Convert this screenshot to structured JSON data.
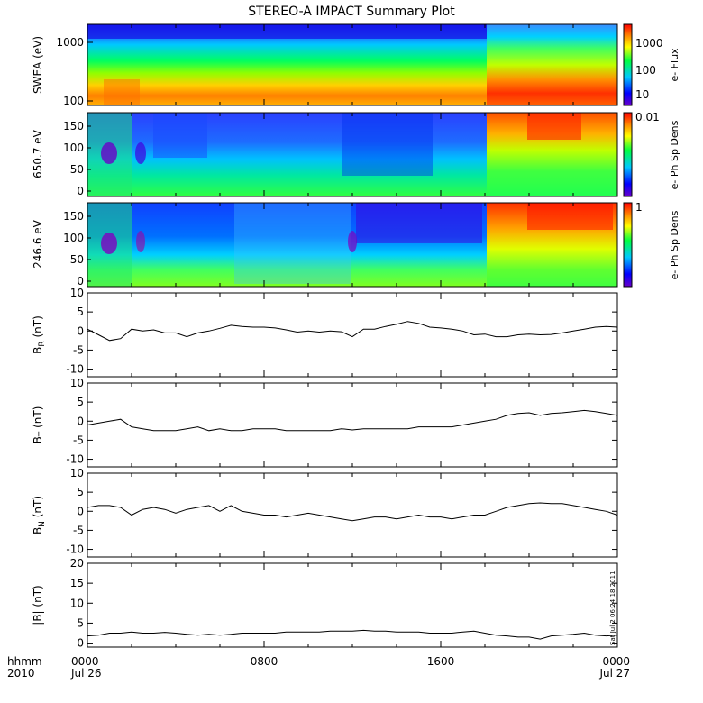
{
  "title": "STEREO-A IMPACT Summary Plot",
  "footer": {
    "left_top": "hhmm",
    "left_bottom": "2010",
    "timestamp": "Sat Jul  2 06:24:18 2011"
  },
  "chart_data": [
    {
      "type": "heatmap",
      "ylabel": "SWEA (eV)",
      "colorbar_label": "e- Flux",
      "yscale": "log",
      "yticks": [
        "1000",
        "100"
      ],
      "colorbar_ticks": [
        "1000",
        "100",
        "10"
      ],
      "note": "log energy vs time; flux high (red) near 100 eV, low (blue) near 1500 eV; enhancement after ~1830"
    },
    {
      "type": "heatmap",
      "ylabel": "650.7 eV",
      "colorbar_label": "e- Ph Sp Dens",
      "yticks": [
        "150",
        "100",
        "50",
        "0"
      ],
      "ylim": [
        0,
        180
      ],
      "colorbar_ticks": [
        "0.01"
      ]
    },
    {
      "type": "heatmap",
      "ylabel": "246.6 eV",
      "colorbar_label": "e- Ph Sp Dens",
      "yticks": [
        "150",
        "100",
        "50",
        "0"
      ],
      "ylim": [
        0,
        180
      ],
      "colorbar_ticks": [
        "1"
      ]
    },
    {
      "type": "line",
      "ylabel_main": "B",
      "ylabel_sub": "R",
      "ylabel_unit": " (nT)",
      "ylim": [
        -12,
        10
      ],
      "yticks": [
        "10",
        "5",
        "0",
        "-5",
        "-10"
      ],
      "x_hours": [
        0,
        0.5,
        1,
        1.5,
        2,
        2.5,
        3,
        3.5,
        4,
        4.5,
        5,
        5.5,
        6,
        6.5,
        7,
        7.5,
        8,
        8.5,
        9,
        9.5,
        10,
        10.5,
        11,
        11.5,
        12,
        12.5,
        13,
        13.5,
        14,
        14.5,
        15,
        15.5,
        16,
        16.5,
        17,
        17.5,
        18,
        18.5,
        19,
        19.5,
        20,
        20.5,
        21,
        21.5,
        22,
        22.5,
        23,
        23.5,
        24
      ],
      "values": [
        0.5,
        -1,
        -2.5,
        -2,
        0.5,
        0,
        0.3,
        -0.5,
        -0.5,
        -1.5,
        -0.5,
        0,
        0.7,
        1.5,
        1.2,
        1.0,
        1.0,
        0.8,
        0.3,
        -0.3,
        0,
        -0.3,
        0,
        -0.2,
        -1.5,
        0.5,
        0.5,
        1.2,
        1.8,
        2.5,
        2.0,
        1.0,
        0.8,
        0.5,
        0.0,
        -1.0,
        -0.8,
        -1.5,
        -1.5,
        -1.0,
        -0.8,
        -1.0,
        -0.9,
        -0.5,
        0.0,
        0.5,
        1.0,
        1.2,
        1.0
      ]
    },
    {
      "type": "line",
      "ylabel_main": "B",
      "ylabel_sub": "T",
      "ylabel_unit": " (nT)",
      "ylim": [
        -12,
        10
      ],
      "yticks": [
        "10",
        "5",
        "0",
        "-5",
        "-10"
      ],
      "x_hours": [
        0,
        0.5,
        1,
        1.5,
        2,
        2.5,
        3,
        3.5,
        4,
        4.5,
        5,
        5.5,
        6,
        6.5,
        7,
        7.5,
        8,
        8.5,
        9,
        9.5,
        10,
        10.5,
        11,
        11.5,
        12,
        12.5,
        13,
        13.5,
        14,
        14.5,
        15,
        15.5,
        16,
        16.5,
        17,
        17.5,
        18,
        18.5,
        19,
        19.5,
        20,
        20.5,
        21,
        21.5,
        22,
        22.5,
        23,
        23.5,
        24
      ],
      "values": [
        -1,
        -0.5,
        0,
        0.5,
        -1.5,
        -2,
        -2.5,
        -2.5,
        -2.5,
        -2,
        -1.5,
        -2.5,
        -2,
        -2.5,
        -2.5,
        -2,
        -2,
        -2,
        -2.5,
        -2.5,
        -2.5,
        -2.5,
        -2.5,
        -2,
        -2.3,
        -2,
        -2,
        -2,
        -2,
        -2,
        -1.5,
        -1.5,
        -1.5,
        -1.5,
        -1,
        -0.5,
        0,
        0.5,
        1.5,
        2,
        2.2,
        1.5,
        2,
        2.2,
        2.5,
        2.8,
        2.5,
        2.0,
        1.5
      ]
    },
    {
      "type": "line",
      "ylabel_main": "B",
      "ylabel_sub": "N",
      "ylabel_unit": " (nT)",
      "ylim": [
        -12,
        10
      ],
      "yticks": [
        "10",
        "5",
        "0",
        "-5",
        "-10"
      ],
      "x_hours": [
        0,
        0.5,
        1,
        1.5,
        2,
        2.5,
        3,
        3.5,
        4,
        4.5,
        5,
        5.5,
        6,
        6.5,
        7,
        7.5,
        8,
        8.5,
        9,
        9.5,
        10,
        10.5,
        11,
        11.5,
        12,
        12.5,
        13,
        13.5,
        14,
        14.5,
        15,
        15.5,
        16,
        16.5,
        17,
        17.5,
        18,
        18.5,
        19,
        19.5,
        20,
        20.5,
        21,
        21.5,
        22,
        22.5,
        23,
        23.5,
        24
      ],
      "values": [
        1,
        1.5,
        1.5,
        1.0,
        -1.0,
        0.5,
        1,
        0.5,
        -0.5,
        0.5,
        1,
        1.5,
        0,
        1.5,
        0,
        -0.5,
        -1.0,
        -1.0,
        -1.5,
        -1.0,
        -0.5,
        -1.0,
        -1.5,
        -2.0,
        -2.5,
        -2.0,
        -1.5,
        -1.5,
        -2.0,
        -1.5,
        -1.0,
        -1.5,
        -1.5,
        -2.0,
        -1.5,
        -1.0,
        -1.0,
        0,
        1.0,
        1.5,
        2.0,
        2.2,
        2.0,
        2.0,
        1.5,
        1.0,
        0.5,
        0,
        -1.0
      ]
    },
    {
      "type": "line",
      "ylabel": "|B| (nT)",
      "ylim": [
        -1,
        20
      ],
      "yticks": [
        "20",
        "15",
        "10",
        "5",
        "0"
      ],
      "x_hours": [
        0,
        0.5,
        1,
        1.5,
        2,
        2.5,
        3,
        3.5,
        4,
        4.5,
        5,
        5.5,
        6,
        6.5,
        7,
        7.5,
        8,
        8.5,
        9,
        9.5,
        10,
        10.5,
        11,
        11.5,
        12,
        12.5,
        13,
        13.5,
        14,
        14.5,
        15,
        15.5,
        16,
        16.5,
        17,
        17.5,
        18,
        18.5,
        19,
        19.5,
        20,
        20.5,
        21,
        21.5,
        22,
        22.5,
        23,
        23.5,
        24
      ],
      "values": [
        1.8,
        2.0,
        2.5,
        2.5,
        2.8,
        2.5,
        2.5,
        2.7,
        2.5,
        2.2,
        2.0,
        2.2,
        2.0,
        2.2,
        2.5,
        2.5,
        2.5,
        2.5,
        2.8,
        2.8,
        2.8,
        2.8,
        3.0,
        3.0,
        3.0,
        3.2,
        3.0,
        3.0,
        2.8,
        2.8,
        2.8,
        2.5,
        2.5,
        2.5,
        2.8,
        3.0,
        2.5,
        2.0,
        1.8,
        1.5,
        1.5,
        1.0,
        1.8,
        2.0,
        2.2,
        2.5,
        2.0,
        1.8,
        2.0
      ]
    }
  ],
  "x_axis": {
    "range_hours": [
      0,
      24
    ],
    "ticks": [
      {
        "hour": 0,
        "top": "0000",
        "bottom": "Jul 26"
      },
      {
        "hour": 8,
        "top": "0800",
        "bottom": ""
      },
      {
        "hour": 16,
        "top": "1600",
        "bottom": ""
      },
      {
        "hour": 24,
        "top": "0000",
        "bottom": "Jul 27"
      }
    ]
  }
}
